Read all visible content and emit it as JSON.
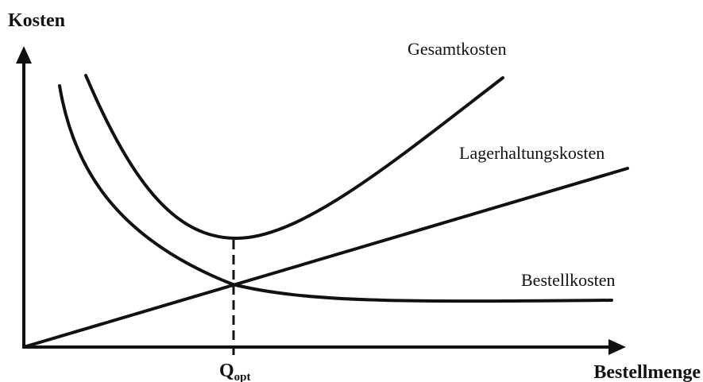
{
  "axes": {
    "y_label": "Kosten",
    "x_label": "Bestellmenge"
  },
  "curves": {
    "total": "Gesamtkosten",
    "holding": "Lagerhaltungskosten",
    "ordering": "Bestellkosten"
  },
  "optimum": {
    "main": "Q",
    "sub": "opt"
  }
}
